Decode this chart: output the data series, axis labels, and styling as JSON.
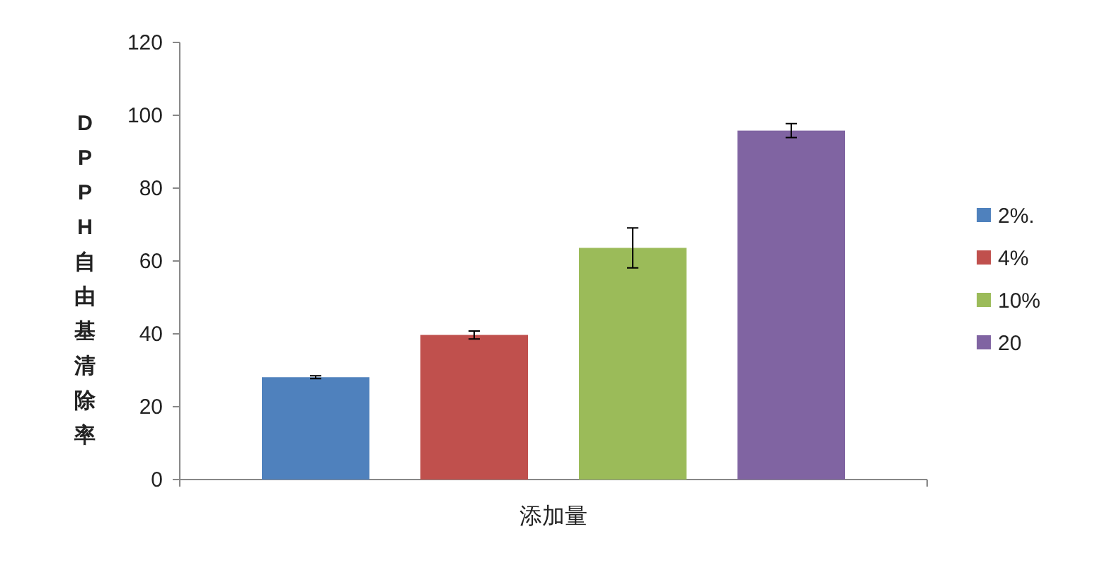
{
  "chart_data": {
    "type": "bar",
    "xlabel": "添加量",
    "ylabel": "DPPH自由基清除率",
    "categories": [
      null
    ],
    "series": [
      {
        "name": "2%.",
        "color": "#4f81bd",
        "values": [
          28.1
        ],
        "errors": [
          0.4
        ]
      },
      {
        "name": "4%",
        "color": "#c0504d",
        "values": [
          39.7
        ],
        "errors": [
          1.1
        ]
      },
      {
        "name": "10%",
        "color": "#9bbb59",
        "values": [
          63.6
        ],
        "errors": [
          5.5
        ]
      },
      {
        "name": "20",
        "color": "#8064a2",
        "values": [
          95.8
        ],
        "errors": [
          1.9
        ]
      }
    ],
    "ylim": [
      0,
      120
    ],
    "yticks": [
      0,
      20,
      40,
      60,
      80,
      100,
      120
    ],
    "grid": false,
    "legend": "right"
  }
}
